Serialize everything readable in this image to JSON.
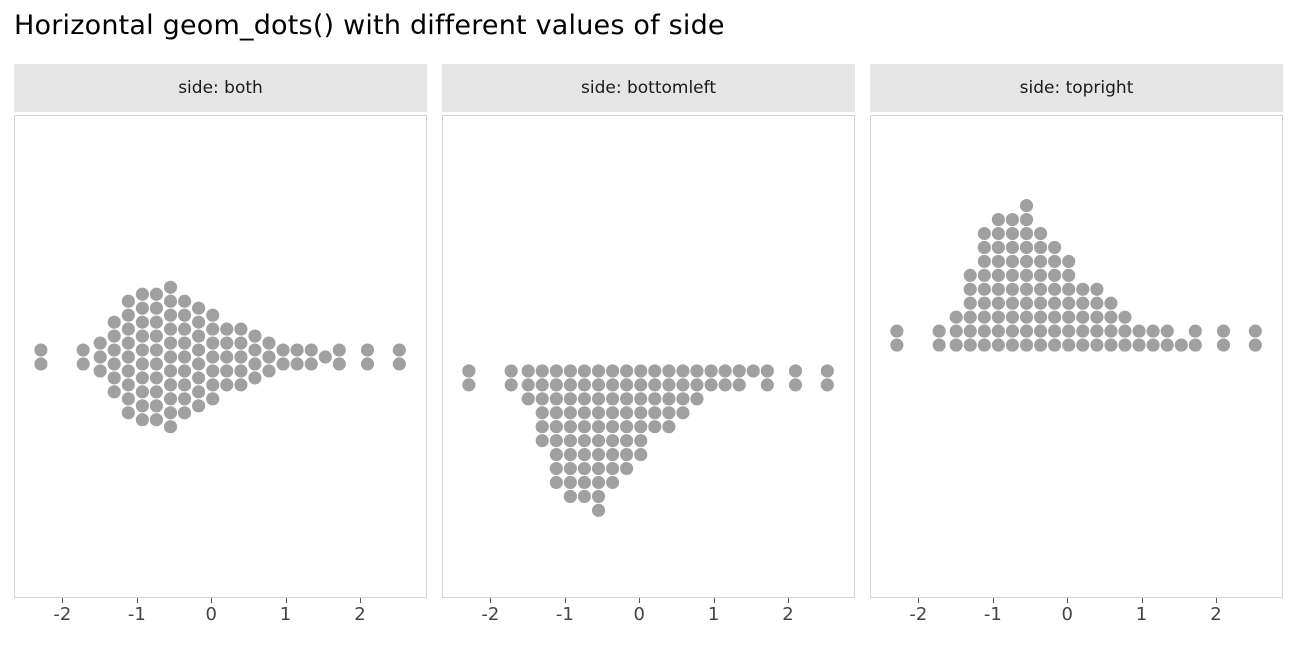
{
  "title": "Horizontal geom_dots() with different values of side",
  "chart_data": {
    "type": "dotplot",
    "orientation": "horizontal",
    "title": "Horizontal geom_dots() with different values of side",
    "facets": [
      {
        "label": "side: both",
        "side": "both"
      },
      {
        "label": "side: bottomleft",
        "side": "bottomleft"
      },
      {
        "label": "side: topright",
        "side": "topright"
      }
    ],
    "x_ticks": [
      "-2",
      "-1",
      "0",
      "1",
      "2"
    ],
    "x_tick_values": [
      -2,
      -1,
      0,
      1,
      2
    ],
    "xlim": [
      -2.65,
      2.9
    ],
    "ylabel": "",
    "xlabel": "",
    "grid": false,
    "legend": "none",
    "dot_color": "#a0a0a0",
    "strip_bg": "#e5e5e5",
    "panel_border": "#d3d3d3",
    "axis_text_color": "#444444",
    "bins": [
      {
        "x": -2.3,
        "count": 2
      },
      {
        "x": -1.73,
        "count": 2
      },
      {
        "x": -1.5,
        "count": 3
      },
      {
        "x": -1.31,
        "count": 6
      },
      {
        "x": -1.12,
        "count": 9
      },
      {
        "x": -0.93,
        "count": 10
      },
      {
        "x": -0.74,
        "count": 10
      },
      {
        "x": -0.55,
        "count": 11
      },
      {
        "x": -0.36,
        "count": 9
      },
      {
        "x": -0.17,
        "count": 8
      },
      {
        "x": 0.02,
        "count": 7
      },
      {
        "x": 0.21,
        "count": 5
      },
      {
        "x": 0.4,
        "count": 5
      },
      {
        "x": 0.59,
        "count": 4
      },
      {
        "x": 0.78,
        "count": 3
      },
      {
        "x": 0.97,
        "count": 2
      },
      {
        "x": 1.16,
        "count": 2
      },
      {
        "x": 1.35,
        "count": 2
      },
      {
        "x": 1.54,
        "count": 1
      },
      {
        "x": 1.73,
        "count": 2
      },
      {
        "x": 2.11,
        "count": 2
      },
      {
        "x": 2.54,
        "count": 2
      }
    ]
  }
}
